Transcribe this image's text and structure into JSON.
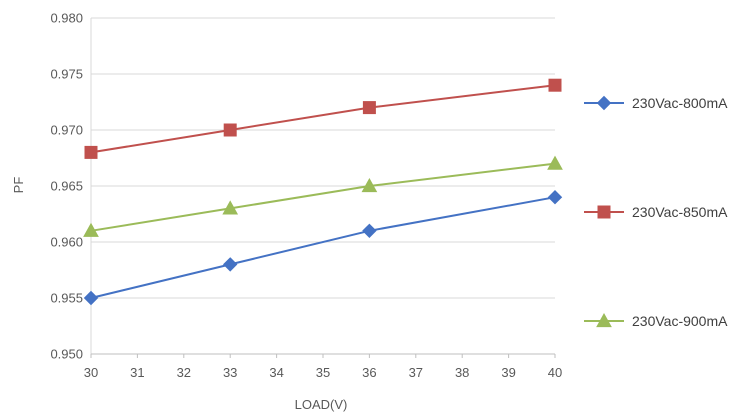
{
  "chart_data": {
    "type": "line",
    "title": "",
    "xlabel": "LOAD(V)",
    "ylabel": "PF",
    "xlim": [
      30,
      40
    ],
    "ylim": [
      0.95,
      0.98
    ],
    "x_ticks": [
      "30",
      "31",
      "32",
      "33",
      "34",
      "35",
      "36",
      "37",
      "38",
      "39",
      "40"
    ],
    "y_ticks": [
      "0.950",
      "0.955",
      "0.960",
      "0.965",
      "0.970",
      "0.975",
      "0.980"
    ],
    "grid": {
      "horizontal": true,
      "vertical": false
    },
    "legend_position": "right",
    "series": [
      {
        "name": "230Vac-800mA",
        "color": "#4472C4",
        "marker": "diamond",
        "x": [
          30,
          33,
          36,
          40
        ],
        "y": [
          0.955,
          0.958,
          0.961,
          0.964
        ]
      },
      {
        "name": "230Vac-850mA",
        "color": "#C0504D",
        "marker": "square",
        "x": [
          30,
          33,
          36,
          40
        ],
        "y": [
          0.968,
          0.97,
          0.972,
          0.974
        ]
      },
      {
        "name": "230Vac-900mA",
        "color": "#9BBB59",
        "marker": "triangle",
        "x": [
          30,
          33,
          36,
          40
        ],
        "y": [
          0.961,
          0.963,
          0.965,
          0.967
        ]
      }
    ]
  }
}
